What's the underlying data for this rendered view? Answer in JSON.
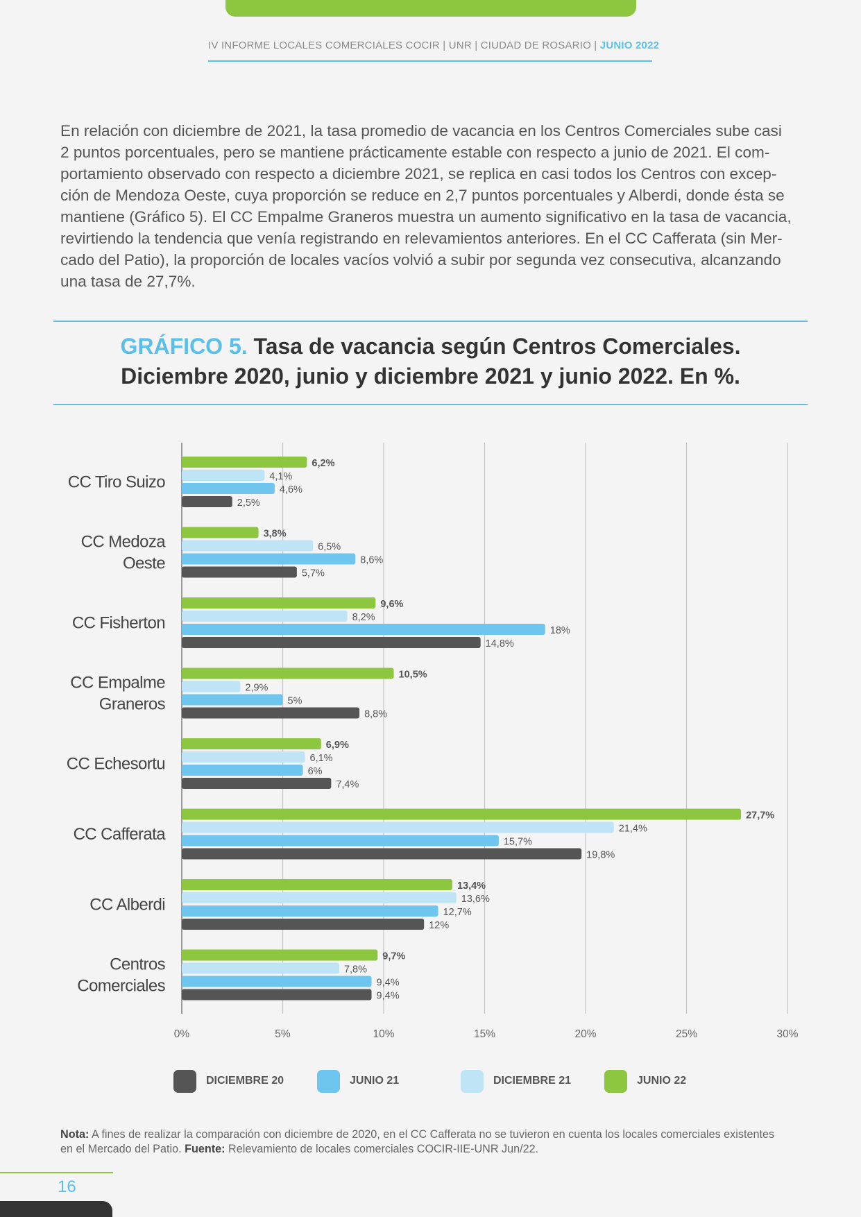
{
  "header": {
    "report": "IV INFORME LOCALES COMERCIALES COCIR | UNR | CIUDAD DE ROSARIO |",
    "date": "JUNIO 2022"
  },
  "body_lines": [
    "En relación con diciembre de 2021, la tasa promedio de vacancia en los Centros Comerciales sube casi",
    "2 puntos porcentuales, pero se mantiene prácticamente estable con respecto a junio de 2021. El com-",
    "portamiento observado con respecto a diciembre 2021, se replica en casi todos los Centros con excep-",
    "ción de Mendoza Oeste, cuya proporción se reduce en 2,7 puntos porcentuales y Alberdi, donde ésta se",
    "mantiene (Gráfico 5). El CC Empalme Graneros muestra un aumento significativo en la tasa de vacancia,",
    "revirtiendo la tendencia que venía registrando en relevamientos anteriores. En el CC Cafferata (sin Mer-",
    "cado del Patio), la proporción de locales vacíos volvió a subir por segunda vez consecutiva, alcanzando",
    "una tasa de 27,7%."
  ],
  "chart_heading": {
    "number": "GRÁFICO 5.",
    "title_line1": "Tasa de vacancia según Centros Comerciales.",
    "title_line2": "Diciembre 2020, junio y diciembre 2021 y junio 2022. En %."
  },
  "chart_data": {
    "type": "bar",
    "orientation": "horizontal",
    "categories": [
      [
        "CC Tiro Suizo"
      ],
      [
        "CC Medoza",
        "Oeste"
      ],
      [
        "CC Fisherton"
      ],
      [
        "CC Empalme",
        "Graneros"
      ],
      [
        "CC Echesortu"
      ],
      [
        "CC Cafferata"
      ],
      [
        "CC Alberdi"
      ],
      [
        "Centros",
        "Comerciales"
      ]
    ],
    "series": [
      {
        "name": "JUNIO 22",
        "color": "#8dc63f",
        "bold_labels": true,
        "values": [
          6.2,
          3.8,
          9.6,
          10.5,
          6.9,
          27.7,
          13.4,
          9.7
        ],
        "labels": [
          "6,2%",
          "3,8%",
          "9,6%",
          "10,5%",
          "6,9%",
          "27,7%",
          "13,4%",
          "9,7%"
        ]
      },
      {
        "name": "DICIEMBRE 21",
        "color": "#bfe4f6",
        "bold_labels": false,
        "values": [
          4.1,
          6.5,
          8.2,
          2.9,
          6.1,
          21.4,
          13.6,
          7.8
        ],
        "labels": [
          "4,1%",
          "6,5%",
          "8,2%",
          "2,9%",
          "6,1%",
          "21,4%",
          "13,6%",
          "7,8%"
        ]
      },
      {
        "name": "JUNIO 21",
        "color": "#6ec6ee",
        "bold_labels": false,
        "values": [
          4.6,
          8.6,
          18,
          5,
          6,
          15.7,
          12.7,
          9.4
        ],
        "labels": [
          "4,6%",
          "8,6%",
          "18%",
          "5%",
          "6%",
          "15,7%",
          "12,7%",
          "9,4%"
        ]
      },
      {
        "name": "DICIEMBRE 20",
        "color": "#555555",
        "bold_labels": false,
        "values": [
          2.5,
          5.7,
          14.8,
          8.8,
          7.4,
          19.8,
          12,
          9.4
        ],
        "labels": [
          "2,5%",
          "5,7%",
          "14,8%",
          "8,8%",
          "7,4%",
          "19,8%",
          "12%",
          "9,4%"
        ]
      }
    ],
    "xticks": [
      "0%",
      "5%",
      "10%",
      "15%",
      "20%",
      "25%",
      "30%"
    ],
    "xlim": [
      0,
      30
    ],
    "grid": true,
    "legend_position": "bottom",
    "legend": [
      {
        "label": "DICIEMBRE 20",
        "color": "#555555"
      },
      {
        "label": "JUNIO 21",
        "color": "#6ec6ee"
      },
      {
        "label": "DICIEMBRE 21",
        "color": "#bfe4f6"
      },
      {
        "label": "JUNIO 22",
        "color": "#8dc63f"
      }
    ]
  },
  "note": {
    "nota_label": "Nota:",
    "nota_text": "A fines de realizar la comparación con diciembre de 2020, en el CC Cafferata no se tuvieron en cuenta los locales comerciales existentes",
    "line2_text": "en el Mercado del Patio.",
    "fuente_label": "Fuente:",
    "fuente_text": "Relevamiento de locales comerciales COCIR-IIE-UNR Jun/22."
  },
  "page_number": "16"
}
